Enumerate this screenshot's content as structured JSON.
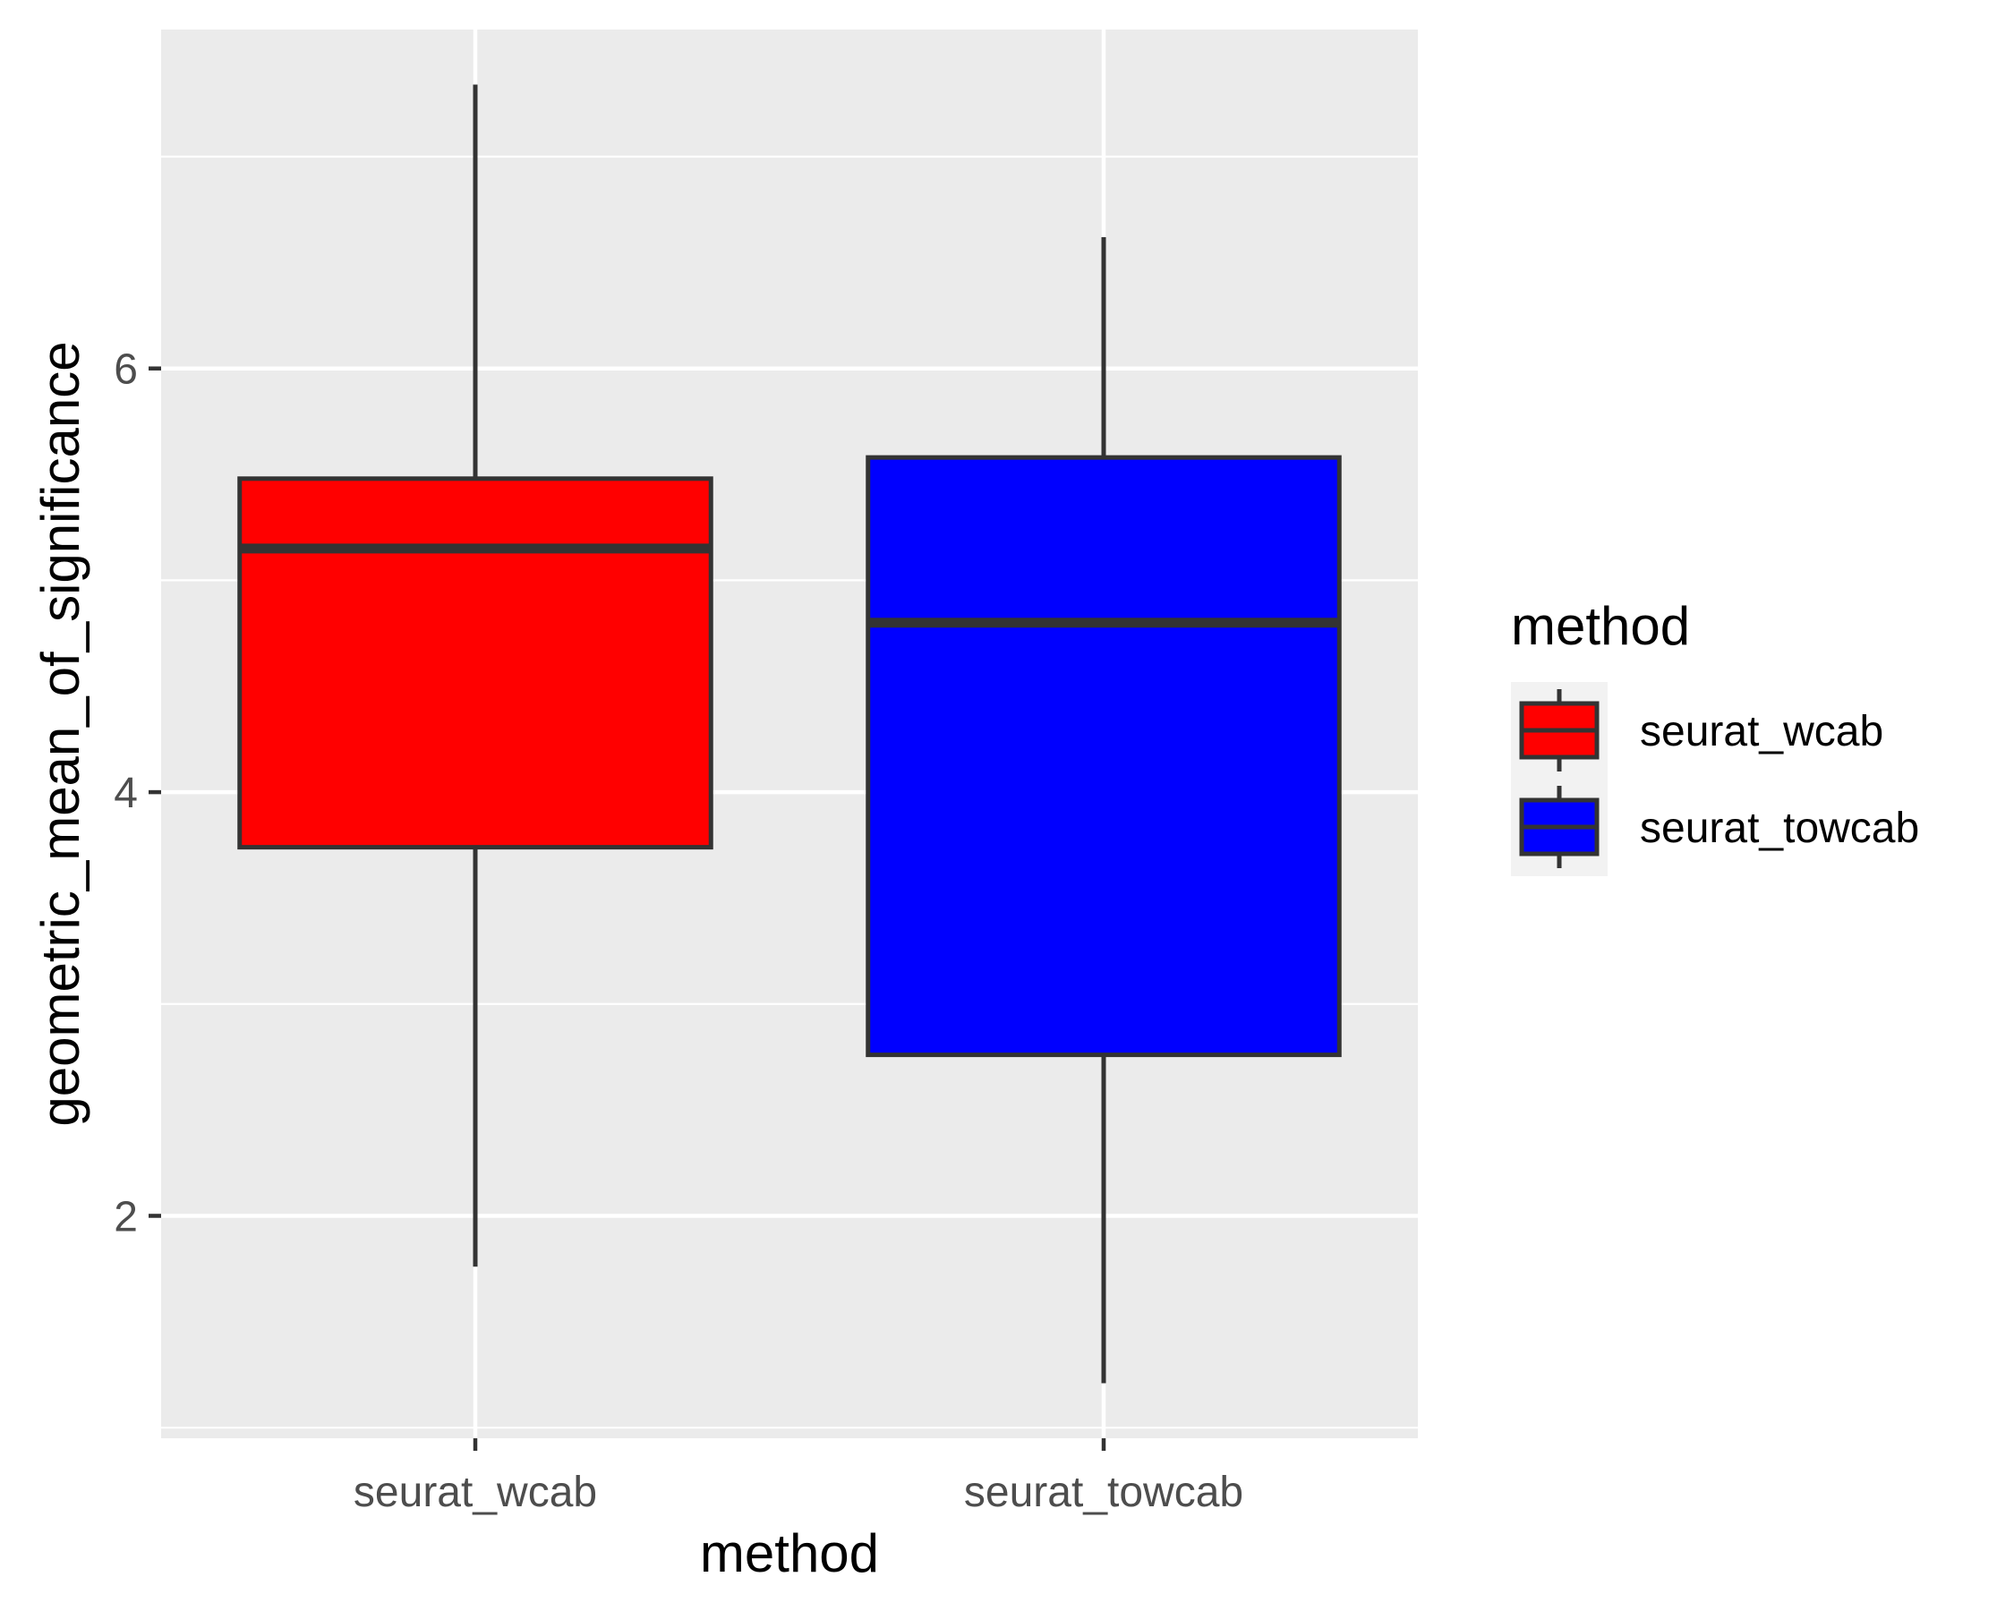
{
  "chart_data": {
    "type": "boxplot",
    "xlabel": "method",
    "ylabel": "geometric_mean_of_significance",
    "categories": [
      "seurat_wcab",
      "seurat_towcab"
    ],
    "ylim": [
      0.95,
      7.6
    ],
    "y_ticks": [
      2,
      4,
      6
    ],
    "y_tick_labels": [
      "2",
      "4",
      "6"
    ],
    "grid": true,
    "legend": {
      "title": "method",
      "position": "right",
      "entries": [
        "seurat_wcab",
        "seurat_towcab"
      ]
    },
    "series": [
      {
        "category": "seurat_wcab",
        "color": "#ff0000",
        "whisker_low": 1.76,
        "q1": 3.74,
        "median": 5.15,
        "q3": 5.48,
        "whisker_high": 7.34
      },
      {
        "category": "seurat_towcab",
        "color": "#0000ff",
        "whisker_low": 1.21,
        "q1": 2.76,
        "median": 4.8,
        "q3": 5.58,
        "whisker_high": 6.62
      }
    ]
  }
}
